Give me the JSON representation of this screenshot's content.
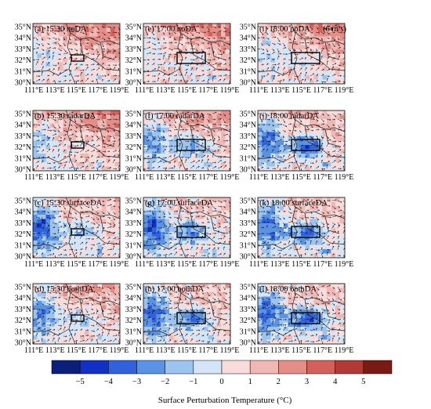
{
  "figure": {
    "domain_box_note": "",
    "y_ticks": [
      "35°N",
      "34°N",
      "33°N",
      "32°N",
      "31°N",
      "30°N"
    ],
    "x_ticks": [
      "111°E",
      "113°E",
      "115°E",
      "117°E",
      "119°E"
    ],
    "reference_vector_label": "(6 m/s)",
    "colorbar": {
      "title": "Surface Perturbation Temperature (°C)",
      "tick_labels": [
        "−5",
        "−4",
        "−3",
        "−2",
        "−1",
        "0",
        "1",
        "2",
        "3",
        "4",
        "5"
      ],
      "colors": [
        "#0a1f7a",
        "#1230c4",
        "#2f62dc",
        "#5a93e6",
        "#9cc4ee",
        "#d3e5f7",
        "#f8dcdc",
        "#f0b8b4",
        "#e58e88",
        "#d2605b",
        "#b03a36",
        "#7a1a14"
      ]
    }
  },
  "panels": [
    {
      "id": "a",
      "title": "(a) 15:30 noDA",
      "row": 0,
      "col": 0,
      "warm": 0.8,
      "cold_w": 0.3,
      "cold_c": 0.15
    },
    {
      "id": "e",
      "title": "(e) 17:00 noDA",
      "row": 0,
      "col": 1,
      "warm": 0.75,
      "cold_w": 0.25,
      "cold_c": 0.2
    },
    {
      "id": "i",
      "title": "(i) 18:00 noDA",
      "row": 0,
      "col": 2,
      "warm": 0.7,
      "cold_w": 0.3,
      "cold_c": 0.25
    },
    {
      "id": "b",
      "title": "(b) 15:30 radarDA",
      "row": 1,
      "col": 0,
      "warm": 0.75,
      "cold_w": 0.35,
      "cold_c": 0.2
    },
    {
      "id": "f",
      "title": "(f) 17:00 radarDA",
      "row": 1,
      "col": 1,
      "warm": 0.55,
      "cold_w": 0.55,
      "cold_c": 0.6
    },
    {
      "id": "j",
      "title": "(j) 18:00 radarDA",
      "row": 1,
      "col": 2,
      "warm": 0.45,
      "cold_w": 0.65,
      "cold_c": 0.85
    },
    {
      "id": "c",
      "title": "(c) 15:30 surfaceDA",
      "row": 2,
      "col": 0,
      "warm": 0.4,
      "cold_w": 0.8,
      "cold_c": 0.4
    },
    {
      "id": "g",
      "title": "(g) 17:00 surfaceDA",
      "row": 2,
      "col": 1,
      "warm": 0.3,
      "cold_w": 0.75,
      "cold_c": 0.6
    },
    {
      "id": "k",
      "title": "(k) 18:00 surfaceDA",
      "row": 2,
      "col": 2,
      "warm": 0.3,
      "cold_w": 0.7,
      "cold_c": 0.75
    },
    {
      "id": "d",
      "title": "(d) 15:30 bothDA",
      "row": 3,
      "col": 0,
      "warm": 0.55,
      "cold_w": 0.65,
      "cold_c": 0.35
    },
    {
      "id": "h",
      "title": "(h) 17:00 bothDA",
      "row": 3,
      "col": 1,
      "warm": 0.35,
      "cold_w": 0.75,
      "cold_c": 0.65
    },
    {
      "id": "l",
      "title": "(l) 18:00 bothDA",
      "row": 3,
      "col": 2,
      "warm": 0.3,
      "cold_w": 0.75,
      "cold_c": 0.8
    }
  ]
}
